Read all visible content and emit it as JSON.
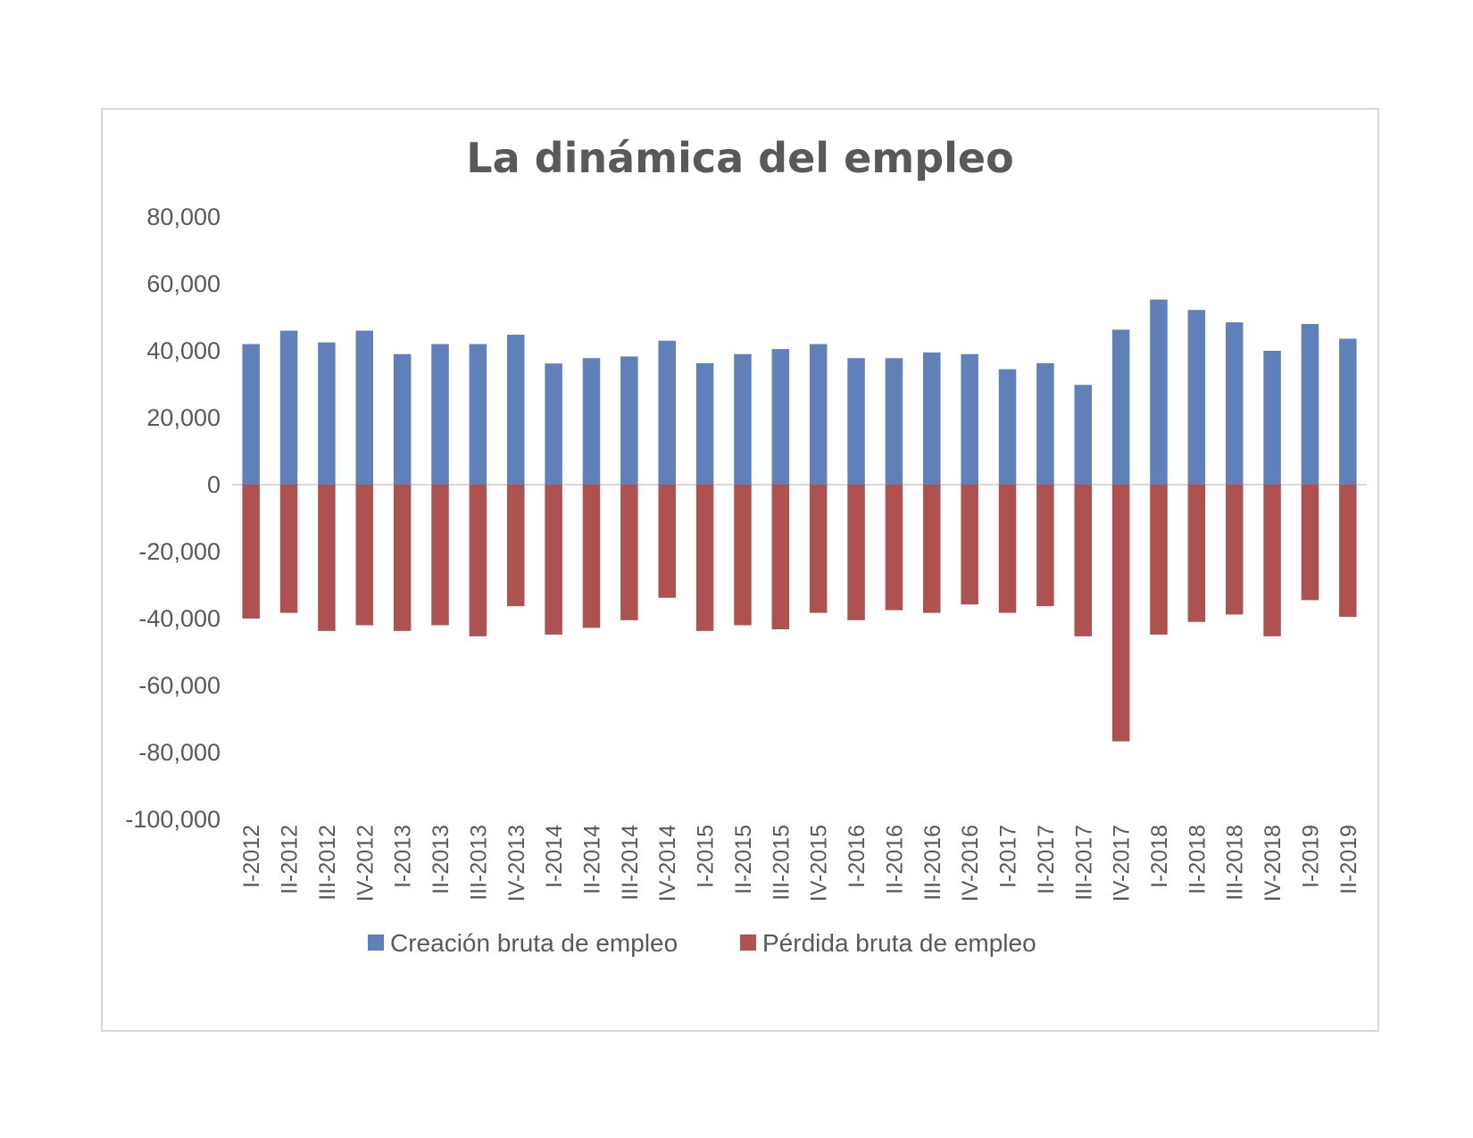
{
  "chart_data": {
    "type": "bar",
    "title": "La dinámica del empleo",
    "xlabel": "",
    "ylabel": "",
    "ylim": [
      -100000,
      80000
    ],
    "yticks": [
      80000,
      60000,
      40000,
      20000,
      0,
      -20000,
      -40000,
      -60000,
      -80000,
      -100000
    ],
    "ytick_labels": [
      "80,000",
      "60,000",
      "40,000",
      "20,000",
      "0",
      "-20,000",
      "-40,000",
      "-60,000",
      "-80,000",
      "-100,000"
    ],
    "grid": false,
    "legend_position": "bottom",
    "stacked": true,
    "categories": [
      "I-2012",
      "II-2012",
      "III-2012",
      "IV-2012",
      "I-2013",
      "II-2013",
      "III-2013",
      "IV-2013",
      "I-2014",
      "II-2014",
      "III-2014",
      "IV-2014",
      "I-2015",
      "II-2015",
      "III-2015",
      "IV-2015",
      "I-2016",
      "II-2016",
      "III-2016",
      "IV-2016",
      "I-2017",
      "II-2017",
      "III-2017",
      "IV-2017",
      "I-2018",
      "II-2018",
      "III-2018",
      "IV-2018",
      "I-2019",
      "II-2019"
    ],
    "series": [
      {
        "name": "Creación bruta de empleo",
        "color": "#6080ba",
        "values": [
          42000,
          46000,
          42500,
          46000,
          39000,
          42000,
          42000,
          44800,
          36200,
          37800,
          38300,
          43000,
          36300,
          39000,
          40500,
          42000,
          37800,
          37800,
          39500,
          39000,
          34500,
          36300,
          29800,
          46300,
          55300,
          52200,
          48500,
          40000,
          48000,
          43600
        ]
      },
      {
        "name": "Pérdida bruta de empleo",
        "color": "#ad5151",
        "values": [
          -40000,
          -38300,
          -43700,
          -42000,
          -43700,
          -42000,
          -45300,
          -36300,
          -44800,
          -42800,
          -40500,
          -33800,
          -43700,
          -42000,
          -43200,
          -38300,
          -40500,
          -37500,
          -38300,
          -35800,
          -38300,
          -36300,
          -45300,
          -76700,
          -44800,
          -41000,
          -38800,
          -45300,
          -34500,
          -39500
        ]
      }
    ]
  }
}
